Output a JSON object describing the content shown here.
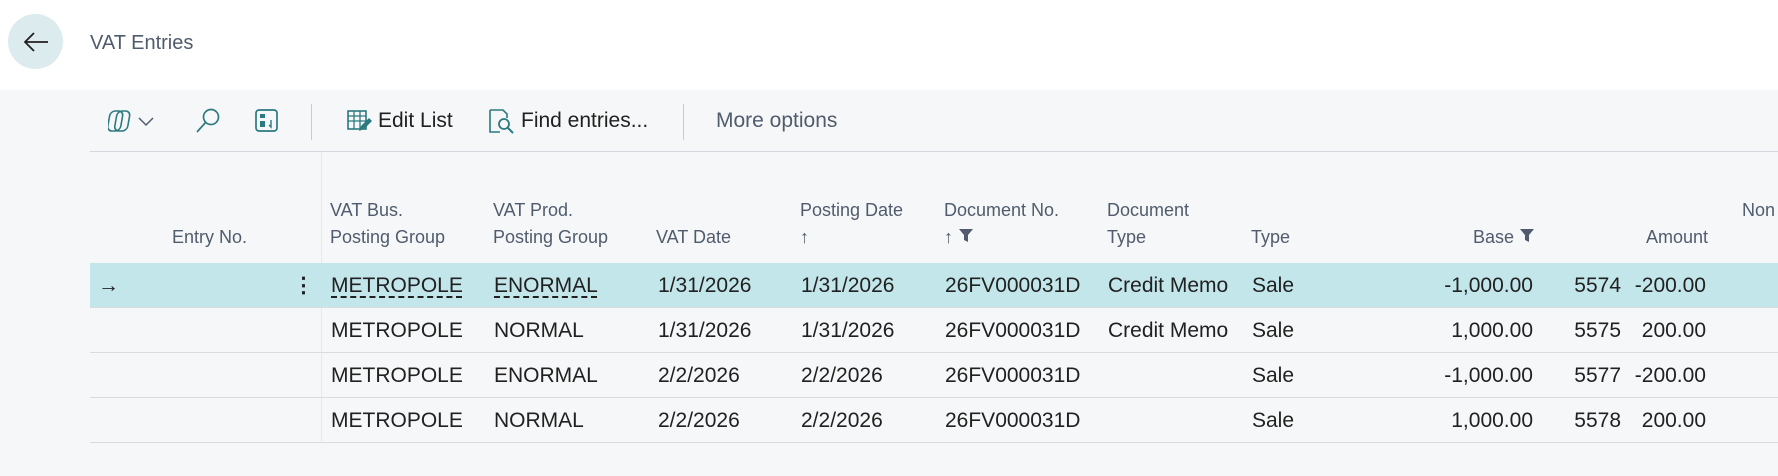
{
  "page": {
    "title": "VAT Entries",
    "back_icon": "arrow-left-icon"
  },
  "toolbar": {
    "copilot_icon": "copilot-icon",
    "search_icon": "search-icon",
    "pane_icon": "details-pane-icon",
    "edit_list": "Edit List",
    "find_entries": "Find entries...",
    "more_options": "More options"
  },
  "columns": {
    "entry_no": "Entry No.",
    "vat_bus_1": "VAT Bus.",
    "vat_bus_2": "Posting Group",
    "vat_prod_1": "VAT Prod.",
    "vat_prod_2": "Posting Group",
    "vat_date": "VAT Date",
    "posting_date": "Posting Date",
    "document_no": "Document No.",
    "doc_type_1": "Document",
    "doc_type_2": "Type",
    "type": "Type",
    "base": "Base",
    "amount": "Amount",
    "non": "Non"
  },
  "sort": {
    "posting_date": "ascending",
    "document_no": "ascending"
  },
  "filters": [
    "document_no",
    "base"
  ],
  "rows": [
    {
      "entry_no": "5574",
      "vat_bus": "METROPOLE",
      "vat_prod": "ENORMAL",
      "vat_date": "1/31/2026",
      "posting_date": "1/31/2026",
      "document_no": "26FV000031D",
      "doc_type": "Credit Memo",
      "type": "Sale",
      "base": "-1,000.00",
      "amount": "-200.00",
      "selected": true
    },
    {
      "entry_no": "5575",
      "vat_bus": "METROPOLE",
      "vat_prod": "NORMAL",
      "vat_date": "1/31/2026",
      "posting_date": "1/31/2026",
      "document_no": "26FV000031D",
      "doc_type": "Credit Memo",
      "type": "Sale",
      "base": "1,000.00",
      "amount": "200.00"
    },
    {
      "entry_no": "5577",
      "vat_bus": "METROPOLE",
      "vat_prod": "ENORMAL",
      "vat_date": "2/2/2026",
      "posting_date": "2/2/2026",
      "document_no": "26FV000031D",
      "doc_type": "",
      "type": "Sale",
      "base": "-1,000.00",
      "amount": "-200.00"
    },
    {
      "entry_no": "5578",
      "vat_bus": "METROPOLE",
      "vat_prod": "NORMAL",
      "vat_date": "2/2/2026",
      "posting_date": "2/2/2026",
      "document_no": "26FV000031D",
      "doc_type": "",
      "type": "Sale",
      "base": "1,000.00",
      "amount": "200.00"
    }
  ],
  "colors": {
    "selected_row": "#c3e6ea",
    "accent": "#2b7a80"
  }
}
